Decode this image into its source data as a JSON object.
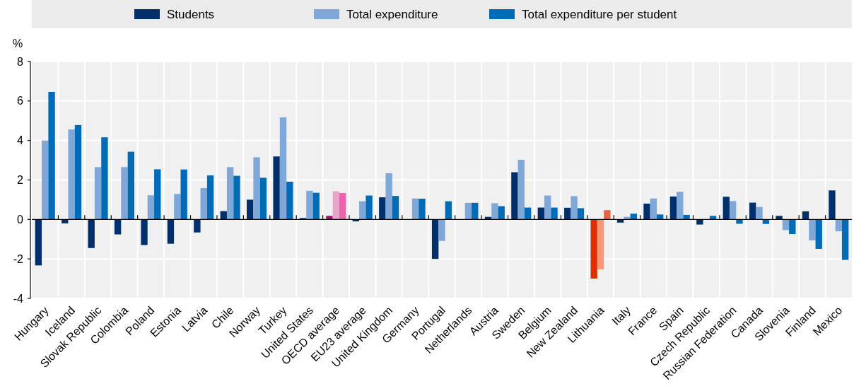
{
  "chart_data": {
    "type": "bar",
    "ylabel": "%",
    "categories": [
      "Hungary",
      "Iceland",
      "Slovak Republic",
      "Colombia",
      "Poland",
      "Estonia",
      "Latvia",
      "Chile",
      "Norway",
      "Turkey",
      "United States",
      "OECD average",
      "EU23 average",
      "United Kingdom",
      "Germany",
      "Portugal",
      "Netherlands",
      "Austria",
      "Sweden",
      "Belgium",
      "New Zealand",
      "Lithuania",
      "Italy",
      "France",
      "Spain",
      "Czech Republic",
      "Russian Federation",
      "Canada",
      "Slovenia",
      "Finland",
      "Mexico"
    ],
    "series": [
      {
        "name": "Students",
        "color": "#002f6c",
        "colors": [
          "#002f6c",
          "#002f6c",
          "#002f6c",
          "#002f6c",
          "#002f6c",
          "#002f6c",
          "#002f6c",
          "#002f6c",
          "#002f6c",
          "#002f6c",
          "#002f6c",
          "#a0116e",
          "#002f6c",
          "#002f6c",
          "#002f6c",
          "#002f6c",
          "#002f6c",
          "#002f6c",
          "#002f6c",
          "#002f6c",
          "#002f6c",
          "#dd2f00",
          "#002f6c",
          "#002f6c",
          "#002f6c",
          "#002f6c",
          "#002f6c",
          "#002f6c",
          "#002f6c",
          "#002f6c",
          "#002f6c"
        ],
        "values": [
          -2.33,
          -0.2,
          -1.45,
          -0.76,
          -1.3,
          -1.23,
          -0.66,
          0.42,
          1.0,
          3.19,
          0.07,
          0.18,
          -0.1,
          1.12,
          0,
          -2.0,
          0,
          0.13,
          2.39,
          0.6,
          0.59,
          -3.0,
          -0.16,
          0.8,
          1.16,
          -0.26,
          1.15,
          0.85,
          0.18,
          0.41,
          1.47
        ]
      },
      {
        "name": "Total expenditure",
        "color": "#7fa8d9",
        "colors": [
          "#7fa8d9",
          "#7fa8d9",
          "#7fa8d9",
          "#7fa8d9",
          "#7fa8d9",
          "#7fa8d9",
          "#7fa8d9",
          "#7fa8d9",
          "#7fa8d9",
          "#7fa8d9",
          "#7fa8d9",
          "#e8a5c9",
          "#7fa8d9",
          "#7fa8d9",
          "#7fa8d9",
          "#7fa8d9",
          "#7fa8d9",
          "#7fa8d9",
          "#7fa8d9",
          "#7fa8d9",
          "#7fa8d9",
          "#f7997a",
          "#7fa8d9",
          "#7fa8d9",
          "#7fa8d9",
          null,
          "#7fa8d9",
          "#7fa8d9",
          "#7fa8d9",
          "#7fa8d9",
          "#7fa8d9"
        ],
        "values": [
          4.0,
          4.56,
          2.65,
          2.65,
          1.22,
          1.29,
          1.59,
          2.65,
          3.15,
          5.17,
          1.45,
          1.43,
          0.92,
          2.34,
          1.06,
          -1.09,
          0.84,
          0.82,
          3.02,
          1.21,
          1.18,
          -2.53,
          0.13,
          1.06,
          1.4,
          null,
          0.93,
          0.63,
          -0.54,
          -1.06,
          -0.6
        ]
      },
      {
        "name": "Total expenditure per student",
        "color": "#006bb6",
        "colors": [
          "#006bb6",
          "#006bb6",
          "#006bb6",
          "#006bb6",
          "#006bb6",
          "#006bb6",
          "#006bb6",
          "#006bb6",
          "#006bb6",
          "#006bb6",
          "#006bb6",
          "#e665ad",
          "#006bb6",
          "#006bb6",
          "#006bb6",
          "#006bb6",
          "#006bb6",
          "#006bb6",
          "#006bb6",
          "#006bb6",
          "#006bb6",
          "#e4644a",
          "#006bb6",
          "#006bb6",
          "#006bb6",
          "#006bb6",
          "#006bb6",
          "#006bb6",
          "#006bb6",
          "#006bb6",
          "#006bb6"
        ],
        "values": [
          6.46,
          4.78,
          4.16,
          3.43,
          2.54,
          2.53,
          2.23,
          2.21,
          2.11,
          1.91,
          1.35,
          1.34,
          1.21,
          1.19,
          1.05,
          0.92,
          0.84,
          0.67,
          0.6,
          0.6,
          0.57,
          0.47,
          0.29,
          0.25,
          0.23,
          0.18,
          -0.22,
          -0.23,
          -0.74,
          -1.49,
          -2.05
        ]
      }
    ],
    "ylim": [
      -4,
      8
    ],
    "yticks": [
      -4,
      -2,
      0,
      2,
      4,
      6,
      8
    ],
    "grid": true,
    "legend": "top"
  }
}
